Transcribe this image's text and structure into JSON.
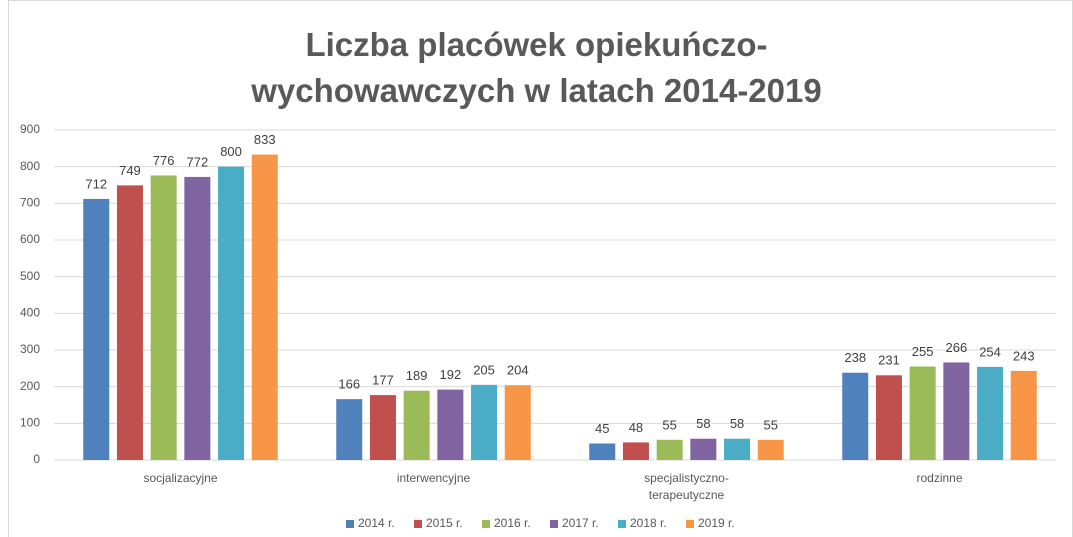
{
  "chart_data": {
    "type": "bar",
    "title": "Liczba placówek opiekuńczo-wychowawczych w latach 2014-2019",
    "categories": [
      "socjalizacyjne",
      "interwencyjne",
      "specjalistyczno-terapeutyczne",
      "rodzinne"
    ],
    "series": [
      {
        "name": "2014 r.",
        "color": "#4f81bd",
        "values": [
          712,
          166,
          45,
          238
        ]
      },
      {
        "name": "2015 r.",
        "color": "#c0504d",
        "values": [
          749,
          177,
          48,
          231
        ]
      },
      {
        "name": "2016 r.",
        "color": "#9bbb59",
        "values": [
          776,
          189,
          55,
          255
        ]
      },
      {
        "name": "2017 r.",
        "color": "#8064a2",
        "values": [
          772,
          192,
          58,
          266
        ]
      },
      {
        "name": "2018 r.",
        "color": "#4bacc6",
        "values": [
          800,
          205,
          58,
          254
        ]
      },
      {
        "name": "2019 r.",
        "color": "#f79646",
        "values": [
          833,
          204,
          55,
          243
        ]
      }
    ],
    "ylim": [
      0,
      900
    ],
    "yticks": [
      0,
      100,
      200,
      300,
      400,
      500,
      600,
      700,
      800,
      900
    ],
    "grid": true,
    "legend": "bottom"
  }
}
